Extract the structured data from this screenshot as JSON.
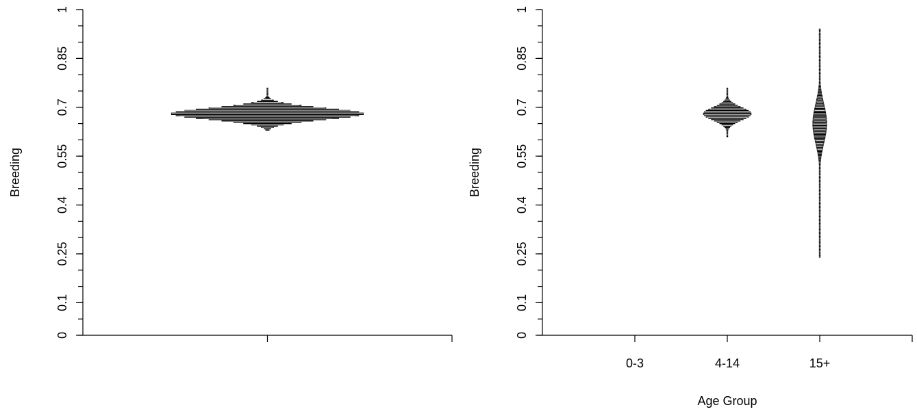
{
  "chart_data": [
    {
      "type": "violin",
      "title": "",
      "xlabel": "",
      "ylabel": "Breeding",
      "ylim": [
        0,
        1
      ],
      "yticks": [
        0,
        0.1,
        0.25,
        0.4,
        0.55,
        0.7,
        0.85,
        1
      ],
      "y_minor_step": 0.05,
      "categories": [
        ""
      ],
      "series": [
        {
          "category_index": 0,
          "center": 0.68,
          "spread": 0.018,
          "min": 0.63,
          "max": 0.76,
          "relative_width": 1.0
        }
      ]
    },
    {
      "type": "violin",
      "title": "",
      "xlabel": "Age Group",
      "ylabel": "Breeding",
      "ylim": [
        0,
        1
      ],
      "yticks": [
        0,
        0.1,
        0.25,
        0.4,
        0.55,
        0.7,
        0.85,
        1
      ],
      "y_minor_step": 0.05,
      "categories": [
        "0-3",
        "4-14",
        "15+"
      ],
      "series": [
        {
          "category_index": 1,
          "center": 0.68,
          "spread": 0.02,
          "min": 0.61,
          "max": 0.76,
          "relative_width": 0.5
        },
        {
          "category_index": 2,
          "center": 0.65,
          "spread": 0.06,
          "min": 0.24,
          "max": 0.94,
          "relative_width": 0.15
        }
      ]
    }
  ]
}
